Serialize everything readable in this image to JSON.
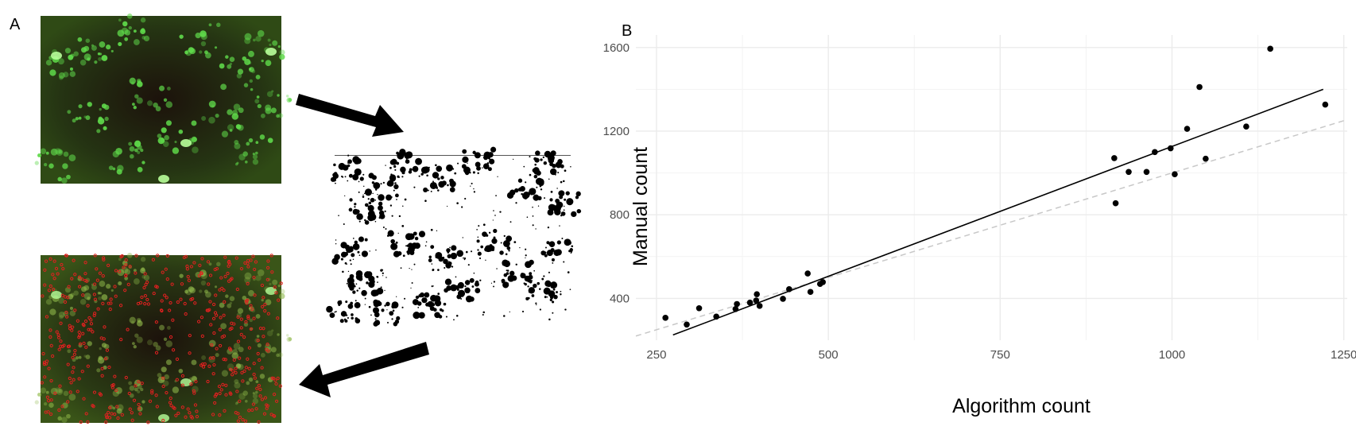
{
  "panels": {
    "a_label": "A",
    "b_label": "B"
  },
  "images": {
    "green_fluorescence": "green-fluorescence-micrograph",
    "binary_mask": "binary-threshold-mask",
    "overlay": "red-detections-overlay"
  },
  "colors": {
    "background": "#ffffff",
    "micrograph_dark": "#1f2a10",
    "cell_green": "#5fd94a",
    "detection_red": "#e02020",
    "fit_line": "#000000",
    "identity_line": "#c8c8c8",
    "grid": "#ebebeb"
  },
  "chart_data": {
    "type": "scatter",
    "xlabel": "Algorithm count",
    "ylabel": "Manual count",
    "xlim": [
      220,
      1255
    ],
    "ylim": [
      200,
      1660
    ],
    "xticks": [
      250,
      500,
      750,
      1000,
      1250
    ],
    "yticks": [
      400,
      800,
      1200,
      1600
    ],
    "grid": true,
    "points": [
      {
        "x": 263,
        "y": 307
      },
      {
        "x": 294,
        "y": 275
      },
      {
        "x": 312,
        "y": 353
      },
      {
        "x": 337,
        "y": 313
      },
      {
        "x": 365,
        "y": 349
      },
      {
        "x": 367,
        "y": 373
      },
      {
        "x": 386,
        "y": 380
      },
      {
        "x": 395,
        "y": 390
      },
      {
        "x": 396,
        "y": 420
      },
      {
        "x": 400,
        "y": 364
      },
      {
        "x": 434,
        "y": 398
      },
      {
        "x": 443,
        "y": 444
      },
      {
        "x": 470,
        "y": 519
      },
      {
        "x": 474,
        "y": 431
      },
      {
        "x": 488,
        "y": 469
      },
      {
        "x": 492,
        "y": 478
      },
      {
        "x": 916,
        "y": 1071
      },
      {
        "x": 918,
        "y": 855
      },
      {
        "x": 937,
        "y": 1005
      },
      {
        "x": 963,
        "y": 1005
      },
      {
        "x": 975,
        "y": 1100
      },
      {
        "x": 998,
        "y": 1118
      },
      {
        "x": 1004,
        "y": 994
      },
      {
        "x": 1022,
        "y": 1211
      },
      {
        "x": 1040,
        "y": 1411
      },
      {
        "x": 1049,
        "y": 1068
      },
      {
        "x": 1108,
        "y": 1222
      },
      {
        "x": 1143,
        "y": 1594
      },
      {
        "x": 1223,
        "y": 1327
      }
    ],
    "fit_line": {
      "x": [
        274,
        1220
      ],
      "y": [
        225,
        1400
      ]
    },
    "identity_line": {
      "x": [
        220,
        1255
      ],
      "y": [
        220,
        1255
      ]
    }
  }
}
